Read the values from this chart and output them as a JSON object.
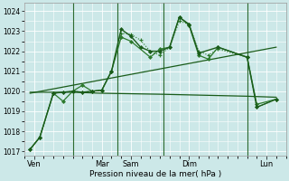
{
  "xlabel": "Pression niveau de la mer( hPa )",
  "bg_color": "#cce8e8",
  "grid_color": "#ffffff",
  "dark": "#1a5c1a",
  "mid": "#2d7a2d",
  "ylim": [
    1016.8,
    1024.4
  ],
  "yticks": [
    1017,
    1018,
    1019,
    1020,
    1021,
    1022,
    1023,
    1024
  ],
  "xlim": [
    0,
    13.5
  ],
  "xtick_labels": [
    "Ven",
    "Mar",
    "Sam",
    "Dim",
    "Lun"
  ],
  "xtick_positions": [
    0.5,
    4.0,
    5.5,
    8.5,
    12.5
  ],
  "vlines_x": [
    2.5,
    4.8,
    7.2,
    11.5
  ],
  "line1_x": [
    0.3,
    0.8,
    1.5,
    2.0,
    2.5,
    3.0,
    3.5,
    4.0,
    4.5,
    5.0,
    5.5,
    6.0,
    6.5,
    7.0,
    7.5,
    8.0,
    8.5,
    9.0,
    9.5,
    10.0,
    11.5,
    12.0,
    13.0
  ],
  "line1_y": [
    1017.1,
    1017.7,
    1019.9,
    1019.95,
    1020.0,
    1019.95,
    1020.0,
    1020.05,
    1021.0,
    1022.9,
    1022.85,
    1022.55,
    1022.0,
    1021.8,
    1022.2,
    1023.5,
    1023.35,
    1022.0,
    1021.8,
    1022.1,
    1021.7,
    1019.2,
    1019.6
  ],
  "line2_x": [
    0.3,
    0.8,
    1.5,
    2.0,
    2.5,
    3.0,
    3.5,
    4.0,
    4.5,
    5.0,
    5.5,
    6.0,
    6.5,
    7.0,
    7.5,
    8.0,
    8.5,
    9.0,
    10.0,
    11.5,
    12.0,
    13.0
  ],
  "line2_y": [
    1017.1,
    1017.7,
    1019.9,
    1019.95,
    1020.0,
    1019.95,
    1020.0,
    1020.05,
    1021.0,
    1023.1,
    1022.75,
    1022.2,
    1022.0,
    1022.0,
    1022.2,
    1023.7,
    1023.35,
    1021.9,
    1022.2,
    1021.7,
    1019.2,
    1019.6
  ],
  "line3_x": [
    0.3,
    1.0,
    2.5,
    4.0,
    7.0,
    11.5,
    13.0
  ],
  "line3_y": [
    1019.95,
    1019.95,
    1019.95,
    1019.9,
    1019.85,
    1019.75,
    1019.7
  ],
  "line4_x": [
    0.3,
    13.0
  ],
  "line4_y": [
    1019.9,
    1022.2
  ],
  "line5_x": [
    0.3,
    0.8,
    1.5,
    2.0,
    2.5,
    3.0,
    3.5,
    4.0,
    4.5,
    5.0,
    5.5,
    6.5,
    7.0,
    7.5,
    8.0,
    8.5,
    9.0,
    9.5,
    10.0,
    11.5,
    12.0,
    13.0
  ],
  "line5_y": [
    1017.1,
    1017.7,
    1019.9,
    1019.5,
    1020.0,
    1020.3,
    1020.0,
    1020.05,
    1021.0,
    1022.7,
    1022.5,
    1021.7,
    1022.1,
    1022.2,
    1023.7,
    1023.3,
    1021.8,
    1021.6,
    1022.2,
    1021.7,
    1019.35,
    1019.6
  ]
}
